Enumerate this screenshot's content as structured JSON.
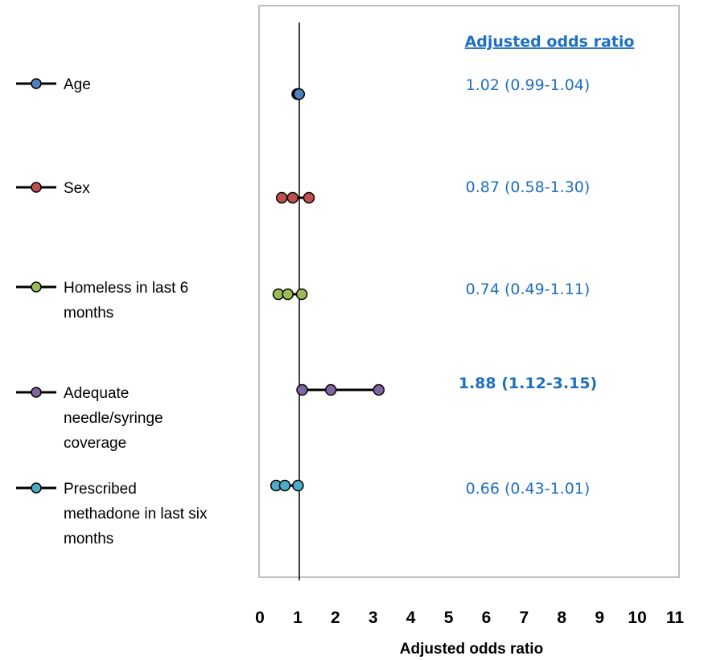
{
  "chart_data": {
    "type": "forest",
    "xlabel": "Adjusted odds ratio",
    "xlim": [
      0,
      11
    ],
    "x_ticks": [
      "0",
      "1",
      "2",
      "3",
      "4",
      "5",
      "6",
      "7",
      "8",
      "9",
      "10",
      "11"
    ],
    "reference_line": 1,
    "or_column_header": "Adjusted odds ratio",
    "colors": {
      "frame": "#bfbfbf",
      "or_text": "#1f6fbf",
      "header_text": "#1f6fbf"
    },
    "series": [
      {
        "name": "Age",
        "label_lines": [
          "Age"
        ],
        "lower": 0.99,
        "estimate": 1.02,
        "upper": 1.04,
        "or_text": "1.02 (0.99-1.04)",
        "bold": false,
        "color": "#4f81bd"
      },
      {
        "name": "Sex",
        "label_lines": [
          "Sex"
        ],
        "lower": 0.58,
        "estimate": 0.87,
        "upper": 1.3,
        "or_text": "0.87 (0.58-1.30)",
        "bold": false,
        "color": "#c0504d"
      },
      {
        "name": "Homeless in last 6 months",
        "label_lines": [
          "Homeless in last 6",
          "months"
        ],
        "lower": 0.49,
        "estimate": 0.74,
        "upper": 1.11,
        "or_text": "0.74 (0.49-1.11)",
        "bold": false,
        "color": "#9bbb59"
      },
      {
        "name": "Adequate needle/syringe coverage",
        "label_lines": [
          "Adequate",
          "needle/syringe",
          "coverage"
        ],
        "lower": 1.12,
        "estimate": 1.88,
        "upper": 3.15,
        "or_text": "1.88 (1.12-3.15)",
        "bold": true,
        "color": "#8064a2"
      },
      {
        "name": "Prescribed methadone in last six months",
        "label_lines": [
          "Prescribed",
          "methadone in last six",
          "months"
        ],
        "lower": 0.43,
        "estimate": 0.66,
        "upper": 1.01,
        "or_text": "0.66 (0.43-1.01)",
        "bold": false,
        "color": "#4bacc6"
      }
    ]
  }
}
